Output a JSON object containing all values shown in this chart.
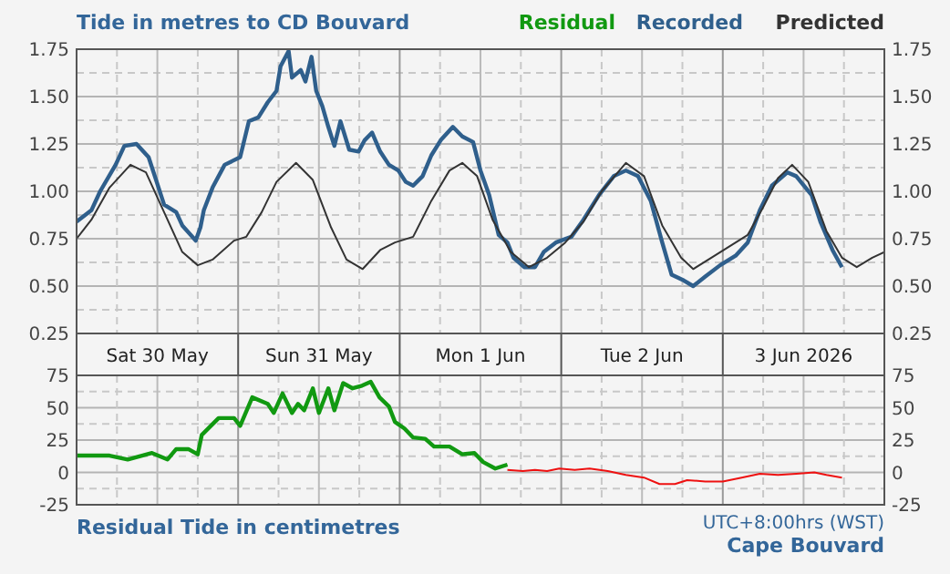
{
  "chart_data": [
    {
      "type": "line",
      "title": "Tide in metres to CD Bouvard",
      "legend": "top right",
      "grid": true,
      "xlim": [
        "2026-05-30T00:00",
        "2026-06-04T00:00"
      ],
      "xticks": [
        {
          "value": "2026-05-30T00:00",
          "label": null
        },
        {
          "value": "2026-05-30T06:00",
          "label": null
        },
        {
          "value": "2026-05-30T12:00",
          "label": "Sat 30 May"
        },
        {
          "value": "2026-05-30T18:00",
          "label": null
        },
        {
          "value": "2026-05-31T00:00",
          "label": null
        },
        {
          "value": "2026-05-31T06:00",
          "label": null
        },
        {
          "value": "2026-05-31T12:00",
          "label": "Sun 31 May"
        },
        {
          "value": "2026-05-31T18:00",
          "label": null
        },
        {
          "value": "2026-06-01T00:00",
          "label": null
        },
        {
          "value": "2026-06-01T06:00",
          "label": null
        },
        {
          "value": "2026-06-01T12:00",
          "label": "Mon 1 Jun"
        },
        {
          "value": "2026-06-01T18:00",
          "label": null
        },
        {
          "value": "2026-06-02T00:00",
          "label": null
        },
        {
          "value": "2026-06-02T06:00",
          "label": null
        },
        {
          "value": "2026-06-02T12:00",
          "label": "Tue 2 Jun"
        },
        {
          "value": "2026-06-02T18:00",
          "label": null
        },
        {
          "value": "2026-06-03T00:00",
          "label": null
        },
        {
          "value": "2026-06-03T06:00",
          "label": null
        },
        {
          "value": "2026-06-03T12:00",
          "label": "3 Jun 2026"
        },
        {
          "value": "2026-06-03T18:00",
          "label": null
        },
        {
          "value": "2026-06-04T00:00",
          "label": null
        }
      ],
      "ylim": [
        0.25,
        1.75
      ],
      "yticks": [
        {
          "value": 0.25,
          "label": "0.25"
        },
        {
          "value": 0.375,
          "label": null
        },
        {
          "value": 0.5,
          "label": "0.50"
        },
        {
          "value": 0.625,
          "label": null
        },
        {
          "value": 0.75,
          "label": "0.75"
        },
        {
          "value": 0.875,
          "label": null
        },
        {
          "value": 1,
          "label": "1.00"
        },
        {
          "value": 1.125,
          "label": null
        },
        {
          "value": 1.25,
          "label": "1.25"
        },
        {
          "value": 1.375,
          "label": null
        },
        {
          "value": 1.5,
          "label": "1.50"
        },
        {
          "value": 1.625,
          "label": null
        },
        {
          "value": 1.75,
          "label": "1.75"
        }
      ],
      "y2lim": [
        0.25,
        1.75
      ],
      "y2ticks": [
        {
          "value": 0.25,
          "label": "0.25"
        },
        {
          "value": 0.5,
          "label": "0.50"
        },
        {
          "value": 0.75,
          "label": "0.75"
        },
        {
          "value": 1,
          "label": "1.00"
        },
        {
          "value": 1.25,
          "label": "1.25"
        },
        {
          "value": 1.5,
          "label": "1.50"
        },
        {
          "value": 1.75,
          "label": "1.75"
        }
      ],
      "series": [
        {
          "name": "Recorded",
          "color": "#2f5f8c",
          "x": [
            "2026-05-30T00:00",
            "2026-05-30T02:12",
            "2026-05-30T03:30",
            "2026-05-30T05:48",
            "2026-05-30T07:06",
            "2026-05-30T08:54",
            "2026-05-30T10:42",
            "2026-05-30T11:54",
            "2026-05-30T13:00",
            "2026-05-30T14:48",
            "2026-05-30T15:42",
            "2026-05-30T17:42",
            "2026-05-30T18:24",
            "2026-05-30T18:54",
            "2026-05-30T20:12",
            "2026-05-30T22:00",
            "2026-05-31T00:18",
            "2026-05-31T01:36",
            "2026-05-31T03:00",
            "2026-05-31T04:24",
            "2026-05-31T05:42",
            "2026-05-31T06:18",
            "2026-05-31T07:30",
            "2026-05-31T08:00",
            "2026-05-31T09:18",
            "2026-05-31T10:00",
            "2026-05-31T10:54",
            "2026-05-31T11:36",
            "2026-05-31T12:30",
            "2026-05-31T13:24",
            "2026-05-31T14:18",
            "2026-05-31T15:12",
            "2026-05-31T16:30",
            "2026-05-31T17:54",
            "2026-05-31T18:48",
            "2026-05-31T19:54",
            "2026-05-31T21:06",
            "2026-05-31T22:24",
            "2026-05-31T23:48",
            "2026-06-01T00:54",
            "2026-06-01T02:00",
            "2026-06-01T03:24",
            "2026-06-01T04:42",
            "2026-06-01T06:06",
            "2026-06-01T07:54",
            "2026-06-01T09:18",
            "2026-06-01T10:54",
            "2026-06-01T12:00",
            "2026-06-01T13:18",
            "2026-06-01T14:42",
            "2026-06-01T16:00",
            "2026-06-01T16:54",
            "2026-06-01T18:30",
            "2026-06-01T20:06",
            "2026-06-01T21:24",
            "2026-06-01T23:12",
            "2026-06-02T01:30",
            "2026-06-02T03:18",
            "2026-06-02T05:36",
            "2026-06-02T07:48",
            "2026-06-02T09:36",
            "2026-06-02T11:24",
            "2026-06-02T13:18",
            "2026-06-02T15:00",
            "2026-06-02T16:24",
            "2026-06-02T18:12",
            "2026-06-02T19:36",
            "2026-06-02T21:24",
            "2026-06-02T23:36",
            "2026-06-03T01:54",
            "2026-06-03T03:42",
            "2026-06-03T05:30",
            "2026-06-03T07:18",
            "2026-06-03T09:36",
            "2026-06-03T10:54",
            "2026-06-03T13:12",
            "2026-06-03T14:30",
            "2026-06-03T16:18",
            "2026-06-03T17:42"
          ],
          "values": [
            0.84,
            0.9,
            1,
            1.14,
            1.24,
            1.25,
            1.18,
            1.05,
            0.93,
            0.89,
            0.82,
            0.74,
            0.81,
            0.9,
            1.02,
            1.14,
            1.18,
            1.37,
            1.39,
            1.47,
            1.53,
            1.66,
            1.74,
            1.6,
            1.64,
            1.58,
            1.71,
            1.53,
            1.45,
            1.34,
            1.24,
            1.37,
            1.22,
            1.21,
            1.27,
            1.31,
            1.21,
            1.14,
            1.11,
            1.05,
            1.03,
            1.08,
            1.19,
            1.27,
            1.34,
            1.29,
            1.26,
            1.11,
            0.98,
            0.77,
            0.73,
            0.65,
            0.6,
            0.6,
            0.68,
            0.73,
            0.76,
            0.85,
            0.98,
            1.08,
            1.11,
            1.08,
            0.95,
            0.73,
            0.56,
            0.53,
            0.5,
            0.55,
            0.61,
            0.66,
            0.73,
            0.9,
            1.03,
            1.1,
            1.08,
            0.98,
            0.84,
            0.69,
            0.6
          ]
        },
        {
          "name": "Predicted",
          "color": "#333333",
          "x": [
            "2026-05-30T00:00",
            "2026-05-30T02:12",
            "2026-05-30T04:54",
            "2026-05-30T08:00",
            "2026-05-30T10:18",
            "2026-05-30T13:00",
            "2026-05-30T15:42",
            "2026-05-30T18:00",
            "2026-05-30T20:12",
            "2026-05-30T23:24",
            "2026-05-31T01:12",
            "2026-05-31T03:30",
            "2026-05-31T05:42",
            "2026-05-31T08:36",
            "2026-05-31T11:06",
            "2026-05-31T13:48",
            "2026-05-31T16:06",
            "2026-05-31T18:30",
            "2026-05-31T21:06",
            "2026-05-31T23:18",
            "2026-06-01T02:00",
            "2026-06-01T04:42",
            "2026-06-01T07:24",
            "2026-06-01T09:18",
            "2026-06-01T11:30",
            "2026-06-01T13:48",
            "2026-06-01T16:30",
            "2026-06-01T19:12",
            "2026-06-01T21:54",
            "2026-06-02T00:36",
            "2026-06-02T03:18",
            "2026-06-02T06:00",
            "2026-06-02T09:36",
            "2026-06-02T12:18",
            "2026-06-02T15:00",
            "2026-06-02T17:48",
            "2026-06-02T19:36",
            "2026-06-02T22:18",
            "2026-06-03T01:00",
            "2026-06-03T03:42",
            "2026-06-03T05:54",
            "2026-06-03T08:12",
            "2026-06-03T10:18",
            "2026-06-03T12:42",
            "2026-06-03T15:24",
            "2026-06-03T17:42",
            "2026-06-03T19:54",
            "2026-06-03T22:12",
            "2026-06-04T00:00"
          ],
          "values": [
            0.75,
            0.85,
            1.02,
            1.14,
            1.1,
            0.89,
            0.68,
            0.61,
            0.64,
            0.74,
            0.76,
            0.89,
            1.05,
            1.15,
            1.06,
            0.81,
            0.64,
            0.59,
            0.69,
            0.73,
            0.76,
            0.95,
            1.11,
            1.15,
            1.08,
            0.85,
            0.68,
            0.6,
            0.65,
            0.73,
            0.84,
            1,
            1.15,
            1.08,
            0.82,
            0.65,
            0.59,
            0.65,
            0.71,
            0.77,
            0.91,
            1.07,
            1.14,
            1.05,
            0.79,
            0.65,
            0.6,
            0.65,
            0.68
          ]
        }
      ]
    },
    {
      "type": "line",
      "title": "Residual Tide in centimetres",
      "legend": "top",
      "grid": true,
      "tick_labels": "y",
      "annotations": [
        "UTC+8:00hrs (WST)",
        "Cape Bouvard"
      ],
      "xlim": [
        "2026-05-30T00:00",
        "2026-06-04T00:00"
      ],
      "xticks": [
        {
          "value": "2026-05-30T00:00",
          "label": null
        },
        {
          "value": "2026-05-30T06:00",
          "label": null
        },
        {
          "value": "2026-05-30T12:00",
          "label": null
        },
        {
          "value": "2026-05-30T18:00",
          "label": null
        },
        {
          "value": "2026-05-31T00:00",
          "label": null
        },
        {
          "value": "2026-05-31T06:00",
          "label": null
        },
        {
          "value": "2026-05-31T12:00",
          "label": null
        },
        {
          "value": "2026-05-31T18:00",
          "label": null
        },
        {
          "value": "2026-06-01T00:00",
          "label": null
        },
        {
          "value": "2026-06-01T06:00",
          "label": null
        },
        {
          "value": "2026-06-01T12:00",
          "label": null
        },
        {
          "value": "2026-06-01T18:00",
          "label": null
        },
        {
          "value": "2026-06-02T00:00",
          "label": null
        },
        {
          "value": "2026-06-02T06:00",
          "label": null
        },
        {
          "value": "2026-06-02T12:00",
          "label": null
        },
        {
          "value": "2026-06-02T18:00",
          "label": null
        },
        {
          "value": "2026-06-03T00:00",
          "label": null
        },
        {
          "value": "2026-06-03T06:00",
          "label": null
        },
        {
          "value": "2026-06-03T12:00",
          "label": null
        },
        {
          "value": "2026-06-03T18:00",
          "label": null
        },
        {
          "value": "2026-06-04T00:00",
          "label": null
        }
      ],
      "ylim": [
        -25,
        75
      ],
      "yticks": [
        -25,
        {
          "value": -12.5,
          "label": null
        },
        0,
        {
          "value": 12.5,
          "label": null
        },
        25,
        {
          "value": 37.5,
          "label": null
        },
        50,
        {
          "value": 62.5,
          "label": null
        },
        75
      ],
      "y2lim": [
        -25,
        75
      ],
      "y2ticks": [
        -25,
        0,
        25,
        50,
        75
      ],
      "series": [
        {
          "name": "Residual",
          "color": "#119911",
          "x": [
            "2026-05-30T00:00",
            "2026-05-30T04:54",
            "2026-05-30T07:36",
            "2026-05-30T11:12",
            "2026-05-30T13:30",
            "2026-05-30T14:48",
            "2026-05-30T16:36",
            "2026-05-30T18:00",
            "2026-05-30T18:36",
            "2026-05-30T21:06",
            "2026-05-30T23:24",
            "2026-05-31T00:18",
            "2026-05-31T02:06",
            "2026-05-31T04:24",
            "2026-05-31T05:18",
            "2026-05-31T06:36",
            "2026-05-31T08:00",
            "2026-05-31T08:54",
            "2026-05-31T09:48",
            "2026-05-31T11:06",
            "2026-05-31T12:00",
            "2026-05-31T13:24",
            "2026-05-31T14:18",
            "2026-05-31T15:36",
            "2026-05-31T17:00",
            "2026-05-31T18:24",
            "2026-05-31T19:42",
            "2026-05-31T21:00",
            "2026-05-31T22:24",
            "2026-05-31T23:18",
            "2026-06-01T00:42",
            "2026-06-01T02:00",
            "2026-06-01T03:48",
            "2026-06-01T05:06",
            "2026-06-01T07:24",
            "2026-06-01T09:18",
            "2026-06-01T11:06",
            "2026-06-01T12:24",
            "2026-06-01T14:12",
            "2026-06-01T16:00"
          ],
          "values": [
            13,
            13,
            10,
            15,
            10,
            18,
            18,
            14,
            29,
            42,
            42,
            36,
            58,
            53,
            46,
            61,
            46,
            53,
            48,
            65,
            46,
            65,
            48,
            69,
            65,
            67,
            70,
            58,
            51,
            39,
            34,
            27,
            26,
            20,
            20,
            14,
            15,
            8,
            3,
            6
          ]
        },
        {
          "color": "#ee1111",
          "x": [
            "2026-06-01T16:00",
            "2026-06-01T18:18",
            "2026-06-01T20:06",
            "2026-06-01T21:54",
            "2026-06-01T23:42",
            "2026-06-02T02:00",
            "2026-06-02T04:12",
            "2026-06-02T06:54",
            "2026-06-02T09:36",
            "2026-06-02T12:18",
            "2026-06-02T14:36",
            "2026-06-02T16:54",
            "2026-06-02T18:42",
            "2026-06-02T21:24",
            "2026-06-03T00:00",
            "2026-06-03T02:48",
            "2026-06-03T05:30",
            "2026-06-03T08:12",
            "2026-06-03T10:54",
            "2026-06-03T13:36",
            "2026-06-03T15:24",
            "2026-06-03T17:42"
          ],
          "values": [
            2,
            1,
            2,
            1,
            3,
            2,
            3,
            1,
            -2,
            -4,
            -9,
            -9,
            -6,
            -7,
            -7,
            -4,
            -1,
            -2,
            -1,
            0,
            -2,
            -4
          ]
        }
      ]
    }
  ]
}
